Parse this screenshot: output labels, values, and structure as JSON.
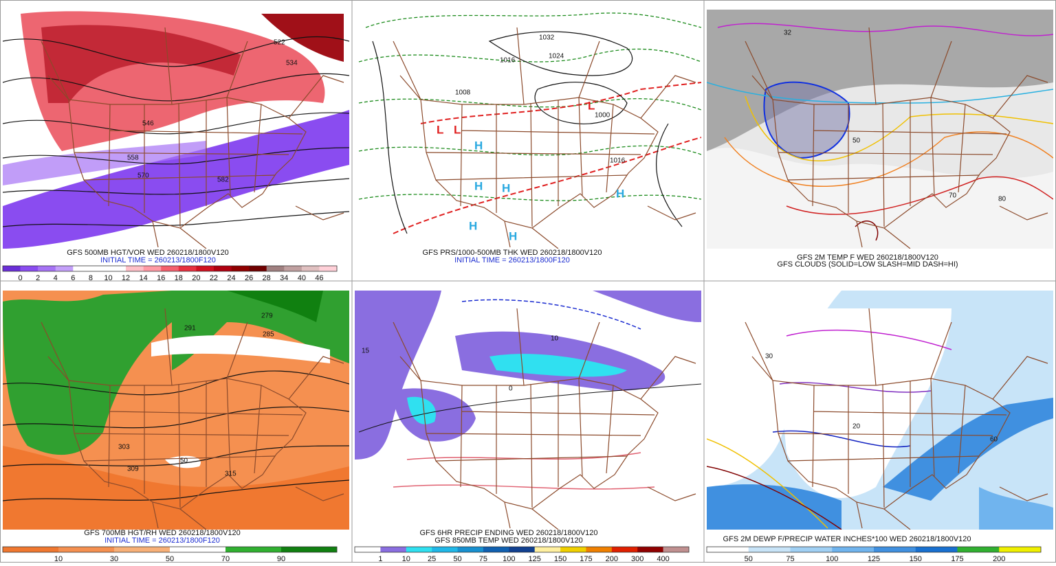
{
  "panels": [
    {
      "title": "GFS 500MB HGT/VOR WED 260218/1800V120",
      "subtitle": "INITIAL TIME = 260213/1800F120",
      "map_labels": [
        "522",
        "534",
        "546",
        "558",
        "570",
        "582"
      ],
      "colorbar": {
        "labels": [
          "0",
          "2",
          "4",
          "6",
          "8",
          "10",
          "12",
          "14",
          "16",
          "18",
          "20",
          "22",
          "24",
          "26",
          "28",
          "34",
          "40",
          "46"
        ],
        "colors": [
          "#6a2ed8",
          "#8a4cf0",
          "#a673f5",
          "#c4a0fa",
          "#ffffff",
          "#ffffff",
          "#ffffff",
          "#ffc0c8",
          "#ff9aa5",
          "#f5606e",
          "#e83040",
          "#d01020",
          "#b00010",
          "#900000",
          "#700000",
          "#a08080",
          "#c0a0a0",
          "#e0c0c0",
          "#ffd0d8"
        ]
      }
    },
    {
      "title": "GFS PRS/1000-500MB THK WED 260218/1800V120",
      "subtitle": "INITIAL TIME = 260213/1800F120",
      "map_labels": [
        "1032",
        "1024",
        "1016",
        "1008",
        "1000",
        "1016",
        "L",
        "L",
        "L",
        "H",
        "H",
        "H",
        "H",
        "H",
        "H"
      ]
    },
    {
      "title": "GFS 2M TEMP F WED 260218/1800V120",
      "subtitle": "GFS CLOUDS (SOLID=LOW SLASH=MID DASH=HI)",
      "map_labels": [
        "32",
        "50",
        "70",
        "80"
      ]
    },
    {
      "title": "GFS 700MB HGT/RH WED 260218/1800V120",
      "subtitle": "INITIAL TIME = 260213/1800F120",
      "map_labels": [
        "279",
        "291",
        "285",
        "303",
        "309",
        "315",
        "50"
      ],
      "colorbar": {
        "labels": [
          "10",
          "30",
          "50",
          "70",
          "90"
        ],
        "colors": [
          "#f07830",
          "#f59050",
          "#f8b078",
          "#ffffff",
          "#30b030",
          "#108010"
        ]
      }
    },
    {
      "title": "GFS 6HR PRECIP ENDING WED 260218/1800V120",
      "subtitle": "GFS 850MB TEMP WED 260218/1800V120",
      "map_labels": [
        "10",
        "0",
        "15"
      ],
      "colorbar": {
        "labels": [
          "1",
          "10",
          "25",
          "50",
          "75",
          "100",
          "125",
          "150",
          "175",
          "200",
          "300",
          "400"
        ],
        "colors": [
          "#ffffff",
          "#8a6ee0",
          "#30e0f0",
          "#20b8e8",
          "#1890d0",
          "#1060b0",
          "#104090",
          "#fff0a0",
          "#f0d000",
          "#f08000",
          "#e02000",
          "#900000",
          "#c09090"
        ]
      }
    },
    {
      "title": "GFS 2M DEWP F/PRECIP WATER INCHES*100 WED 260218/1800V120",
      "map_labels": [
        "30",
        "20",
        "60"
      ],
      "colorbar": {
        "labels": [
          "50",
          "75",
          "100",
          "125",
          "150",
          "175",
          "200"
        ],
        "colors": [
          "#ffffff",
          "#c8e4f8",
          "#a0d0f4",
          "#70b4ee",
          "#4090e0",
          "#1870d0",
          "#30b030",
          "#f0f000"
        ]
      }
    }
  ]
}
